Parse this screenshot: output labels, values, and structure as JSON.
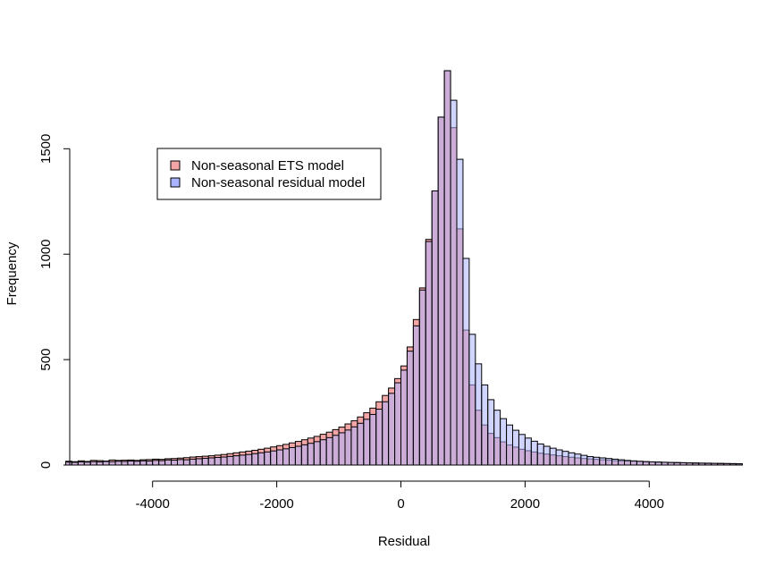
{
  "chart_data": {
    "type": "histogram",
    "title": "",
    "xlabel": "Residual",
    "ylabel": "Frequency",
    "xlim": [
      -5450,
      5450
    ],
    "ylim": [
      0,
      1900
    ],
    "bin_start": -5400,
    "bin_width": 100,
    "x_ticks": [
      -4000,
      -2000,
      0,
      2000,
      4000
    ],
    "x_tick_labels": [
      "-4000",
      "-2000",
      "0",
      "2000",
      "4000"
    ],
    "y_ticks": [
      0,
      500,
      1000,
      1500
    ],
    "y_tick_labels": [
      "0",
      "500",
      "1000",
      "1500"
    ],
    "grid": false,
    "legend_position": "upper-left",
    "series": [
      {
        "name": "Non-seasonal ETS model",
        "color": "#f4a6a6",
        "values": [
          18,
          16,
          20,
          17,
          22,
          21,
          19,
          24,
          22,
          23,
          24,
          22,
          25,
          26,
          28,
          27,
          30,
          31,
          33,
          35,
          38,
          40,
          42,
          44,
          47,
          50,
          54,
          58,
          62,
          66,
          70,
          75,
          80,
          86,
          92,
          98,
          105,
          112,
          120,
          128,
          136,
          146,
          156,
          168,
          180,
          195,
          210,
          228,
          248,
          270,
          300,
          330,
          365,
          410,
          470,
          560,
          690,
          840,
          1070,
          1300,
          1650,
          1870,
          1600,
          1120,
          640,
          380,
          260,
          190,
          150,
          130,
          110,
          95,
          85,
          75,
          68,
          62,
          56,
          52,
          48,
          44,
          40,
          37,
          34,
          31,
          29,
          27,
          25,
          23,
          21,
          20,
          19,
          18,
          17,
          16,
          15,
          14,
          13,
          12,
          12,
          11,
          10,
          10,
          9,
          9,
          8,
          8,
          7,
          7,
          6
        ]
      },
      {
        "name": "Non-seasonal residual model",
        "color": "#aab3ff",
        "values": [
          14,
          13,
          15,
          14,
          16,
          15,
          17,
          16,
          18,
          17,
          19,
          18,
          20,
          19,
          22,
          21,
          24,
          23,
          26,
          25,
          28,
          30,
          32,
          34,
          36,
          38,
          41,
          44,
          47,
          50,
          54,
          58,
          62,
          67,
          72,
          77,
          83,
          89,
          96,
          103,
          111,
          120,
          130,
          141,
          153,
          166,
          181,
          198,
          217,
          240,
          265,
          300,
          340,
          390,
          450,
          540,
          660,
          830,
          1060,
          1300,
          1650,
          1870,
          1730,
          1450,
          980,
          620,
          480,
          380,
          310,
          260,
          220,
          190,
          165,
          145,
          128,
          113,
          100,
          89,
          80,
          72,
          65,
          58,
          52,
          46,
          40,
          37,
          34,
          31,
          28,
          25,
          22,
          20,
          18,
          16,
          15,
          14,
          13,
          12,
          11,
          11,
          10,
          9,
          9,
          8,
          8,
          7,
          7,
          6,
          6
        ]
      }
    ]
  }
}
